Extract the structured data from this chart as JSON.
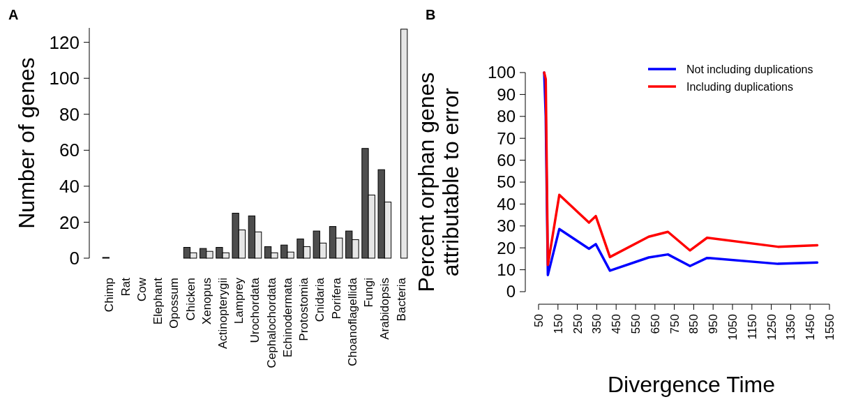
{
  "chart_data": [
    {
      "type": "bar",
      "ylabel": "Number of genes",
      "annotations": [
        "A"
      ],
      "categories": [
        "Chimp",
        "Rat",
        "Cow",
        "Elephant",
        "Opossum",
        "Chicken",
        "Xenopus",
        "Actinopterygii",
        "Lamprey",
        "Urochordata",
        "Cephalochordata",
        "Echinodermata",
        "Protostomia",
        "Cnidaria",
        "Porifera",
        "Choanoflagellida",
        "Fungi",
        "Arabidopsis",
        "Bacteria"
      ],
      "series": [
        {
          "color": "#4d4d4d",
          "values": [
            0.4,
            0,
            0,
            0,
            0,
            6,
            5.4,
            6,
            25,
            23.5,
            6.4,
            7.3,
            10.7,
            15.1,
            17.6,
            15.1,
            61,
            49.2,
            0
          ]
        },
        {
          "color": "#e6e6e6",
          "values": [
            0,
            0,
            0,
            0,
            0,
            3,
            3.8,
            3,
            15.7,
            14.6,
            3,
            3.4,
            6.4,
            8.4,
            11.2,
            10.3,
            35.1,
            31.2,
            127.3
          ]
        }
      ],
      "ylim": [
        0,
        128
      ],
      "yticks": [
        0,
        20,
        40,
        60,
        80,
        100,
        120
      ],
      "grid": false,
      "legend": false
    },
    {
      "type": "line",
      "xlabel": "Divergence Time",
      "ylabel": "Percent orphan genes attributable to error",
      "annotations": [
        "B"
      ],
      "series": [
        {
          "name": "Not including duplications",
          "color": "#0000ff",
          "x": [
            79,
            87,
            98,
            157,
            310,
            345,
            418,
            618,
            717,
            831,
            919,
            1284,
            1487
          ],
          "values": [
            100,
            80,
            7.6,
            28.6,
            19.6,
            21.7,
            9.6,
            15.6,
            17,
            11.7,
            15.4,
            12.7,
            13.3
          ]
        },
        {
          "name": "Including duplications",
          "color": "#ff0000",
          "x": [
            79,
            87,
            98,
            157,
            310,
            345,
            418,
            618,
            717,
            831,
            919,
            1284,
            1487
          ],
          "values": [
            100,
            97,
            12.2,
            44.2,
            31.5,
            34.5,
            15.8,
            25.1,
            27.3,
            18.8,
            24.6,
            20.5,
            21.2
          ]
        }
      ],
      "xlim": [
        50,
        1550
      ],
      "xticks": [
        50,
        150,
        250,
        350,
        450,
        550,
        650,
        750,
        850,
        950,
        1050,
        1150,
        1250,
        1350,
        1450,
        1550
      ],
      "ylim": [
        0,
        100
      ],
      "yticks": [
        0,
        10,
        20,
        30,
        40,
        50,
        60,
        70,
        80,
        90,
        100
      ],
      "grid": false,
      "legend": "top right",
      "line_style": "solid",
      "marker": "none"
    }
  ]
}
